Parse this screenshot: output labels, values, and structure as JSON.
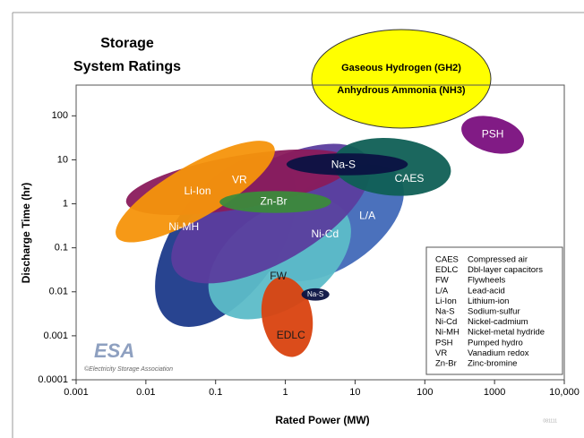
{
  "chart_data": {
    "type": "region",
    "title": [
      "Storage",
      "System Ratings"
    ],
    "x_label": "Rated Power (MW)",
    "y_label": "Discharge Time (hr)",
    "log_x": true,
    "log_y": true,
    "xlim": [
      0.001,
      10000
    ],
    "ylim": [
      0.0001,
      500
    ],
    "xticks": [
      0.001,
      0.01,
      0.1,
      1,
      10,
      100,
      1000,
      {
        "value": 10000,
        "label": "10,000"
      }
    ],
    "yticks": [
      0.0001,
      0.001,
      0.01,
      0.1,
      1,
      10,
      100
    ],
    "regions": [
      {
        "name": "L/A",
        "color": "#4169b8",
        "text_color": "#ffffff",
        "x": 4.9,
        "y": 0.37,
        "rx": 1.15,
        "ry": 1.0,
        "angle": 35,
        "label_x": 15,
        "label_y": 0.52
      },
      {
        "name": "Ni-MH",
        "color": "#1c3a8a",
        "text_color": "#ffffff",
        "x": 0.14,
        "y": 0.14,
        "rx": 1.4,
        "ry": 1.2,
        "angle": 55,
        "label_x": 0.035,
        "label_y": 0.29
      },
      {
        "name": "FW",
        "color": "#5cbcc8",
        "text_color": "#1a1a1a",
        "x": 0.83,
        "y": 0.057,
        "rx": 1.15,
        "ry": 1.1,
        "angle": 35,
        "label_x": 0.79,
        "label_y": 0.022
      },
      {
        "name": "Ni-Cd",
        "color": "#5b3d9e",
        "text_color": "#ffffff",
        "x": 0.62,
        "y": 0.6,
        "rx": 1.6,
        "ry": 1.1,
        "angle": 30,
        "label_x": 3.7,
        "label_y": 0.2
      },
      {
        "name": "VR",
        "color": "#8a1b5c",
        "text_color": "#ffffff",
        "x": 0.22,
        "y": 3.1,
        "rx": 1.65,
        "ry": 0.6,
        "angle": 10,
        "label_x": 0.22,
        "label_y": 3.4
      },
      {
        "name": "Li-Ion",
        "color": "#f5930b",
        "text_color": "#ffffff",
        "x": 0.051,
        "y": 1.9,
        "rx": 1.3,
        "ry": 0.6,
        "angle": 30,
        "label_x": 0.055,
        "label_y": 1.9
      },
      {
        "name": "Zn-Br",
        "color": "#3c8a3b",
        "text_color": "#ffffff",
        "x": 0.72,
        "y": 1.1,
        "rx": 0.8,
        "ry": 0.25,
        "angle": 0,
        "label_x": 0.68,
        "label_y": 1.1
      },
      {
        "name": "EDLC",
        "color": "#d9420f",
        "text_color": "#1a1a1a",
        "x": 1.06,
        "y": 0.0027,
        "rx": 0.36,
        "ry": 0.92,
        "angle": 10,
        "label_x": 1.2,
        "label_y": 0.001
      },
      {
        "name": "Na-S",
        "color": "#0b1242",
        "text_color": "#ffffff",
        "x": 2.7,
        "y": 0.0087,
        "rx": 0.2,
        "ry": 0.14,
        "angle": 0,
        "label_x": 2.7,
        "label_y": 0.0087
      },
      {
        "name": "CAES",
        "color": "#0f5f55",
        "text_color": "#ffffff",
        "x": 33.6,
        "y": 6.9,
        "rx": 0.85,
        "ry": 0.65,
        "angle": -5,
        "label_x": 60,
        "label_y": 3.7
      },
      {
        "name": "Na-S",
        "color": "#0b1242",
        "text_color": "#ffffff",
        "x": 7.7,
        "y": 7.9,
        "rx": 0.87,
        "ry": 0.25,
        "angle": 0,
        "label_x": 6.8,
        "label_y": 7.5
      },
      {
        "name": "PSH",
        "color": "#7a0f7e",
        "text_color": "#ffffff",
        "x": 940,
        "y": 37,
        "rx": 0.46,
        "ry": 0.4,
        "angle": -15,
        "label_x": 940,
        "label_y": 37
      }
    ],
    "annotation": [
      "Gaseous Hydrogen (GH2)",
      "Anhydrous Ammonia (NH3)"
    ],
    "legend": [
      [
        "CAES",
        "Compressed air"
      ],
      [
        "EDLC",
        "Dbl-layer capacitors"
      ],
      [
        "FW",
        "Flywheels"
      ],
      [
        "L/A",
        "Lead-acid"
      ],
      [
        "Li-Ion",
        "Lithium-ion"
      ],
      [
        "Na-S",
        "Sodium-sulfur"
      ],
      [
        "Ni-Cd",
        "Nickel-cadmium"
      ],
      [
        "Ni-MH",
        "Nickel-metal hydride"
      ],
      [
        "PSH",
        "Pumped hydro"
      ],
      [
        "VR",
        "Vanadium redox"
      ],
      [
        "Zn-Br",
        "Zinc-bromine"
      ]
    ],
    "logo": "ESA",
    "credit": "©Electricity Storage Association",
    "code": "081111"
  }
}
